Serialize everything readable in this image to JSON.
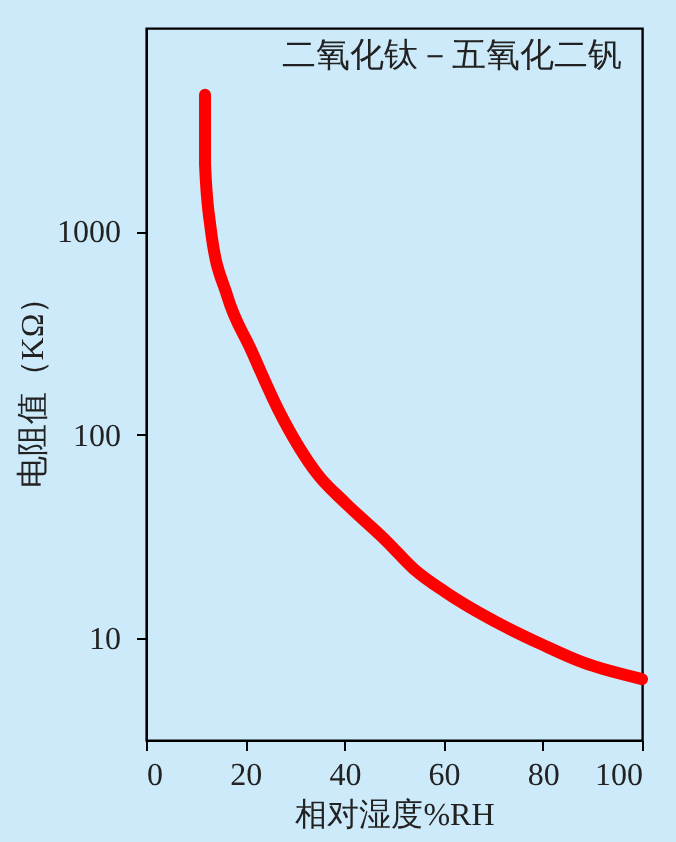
{
  "chart_data": {
    "type": "line",
    "title": "二氧化钛－五氧化二钒",
    "xlabel": "相对湿度%RH",
    "ylabel": "电阻值（KΩ）",
    "x": [
      11.9,
      11.9,
      13,
      16.4,
      21.2,
      26.6,
      34.8,
      40.3,
      48.5,
      54,
      60.8,
      69,
      79.9,
      88.1,
      100
    ],
    "series": [
      {
        "color": "#ff0000",
        "values": [
          4700,
          2140,
          1050,
          480,
          261,
          134,
          63,
          46,
          30,
          21.9,
          16.6,
          12.6,
          9.3,
          7.6,
          6.3
        ]
      }
    ],
    "xlim": [
      0,
      100
    ],
    "xticks": [
      0,
      20,
      40,
      60,
      80,
      100
    ],
    "ylim": [
      3.16,
      10000
    ],
    "yticks": [
      10,
      100,
      1000
    ],
    "log": true,
    "grid": false,
    "legend": false,
    "marker": "none",
    "line_style": "solid"
  }
}
